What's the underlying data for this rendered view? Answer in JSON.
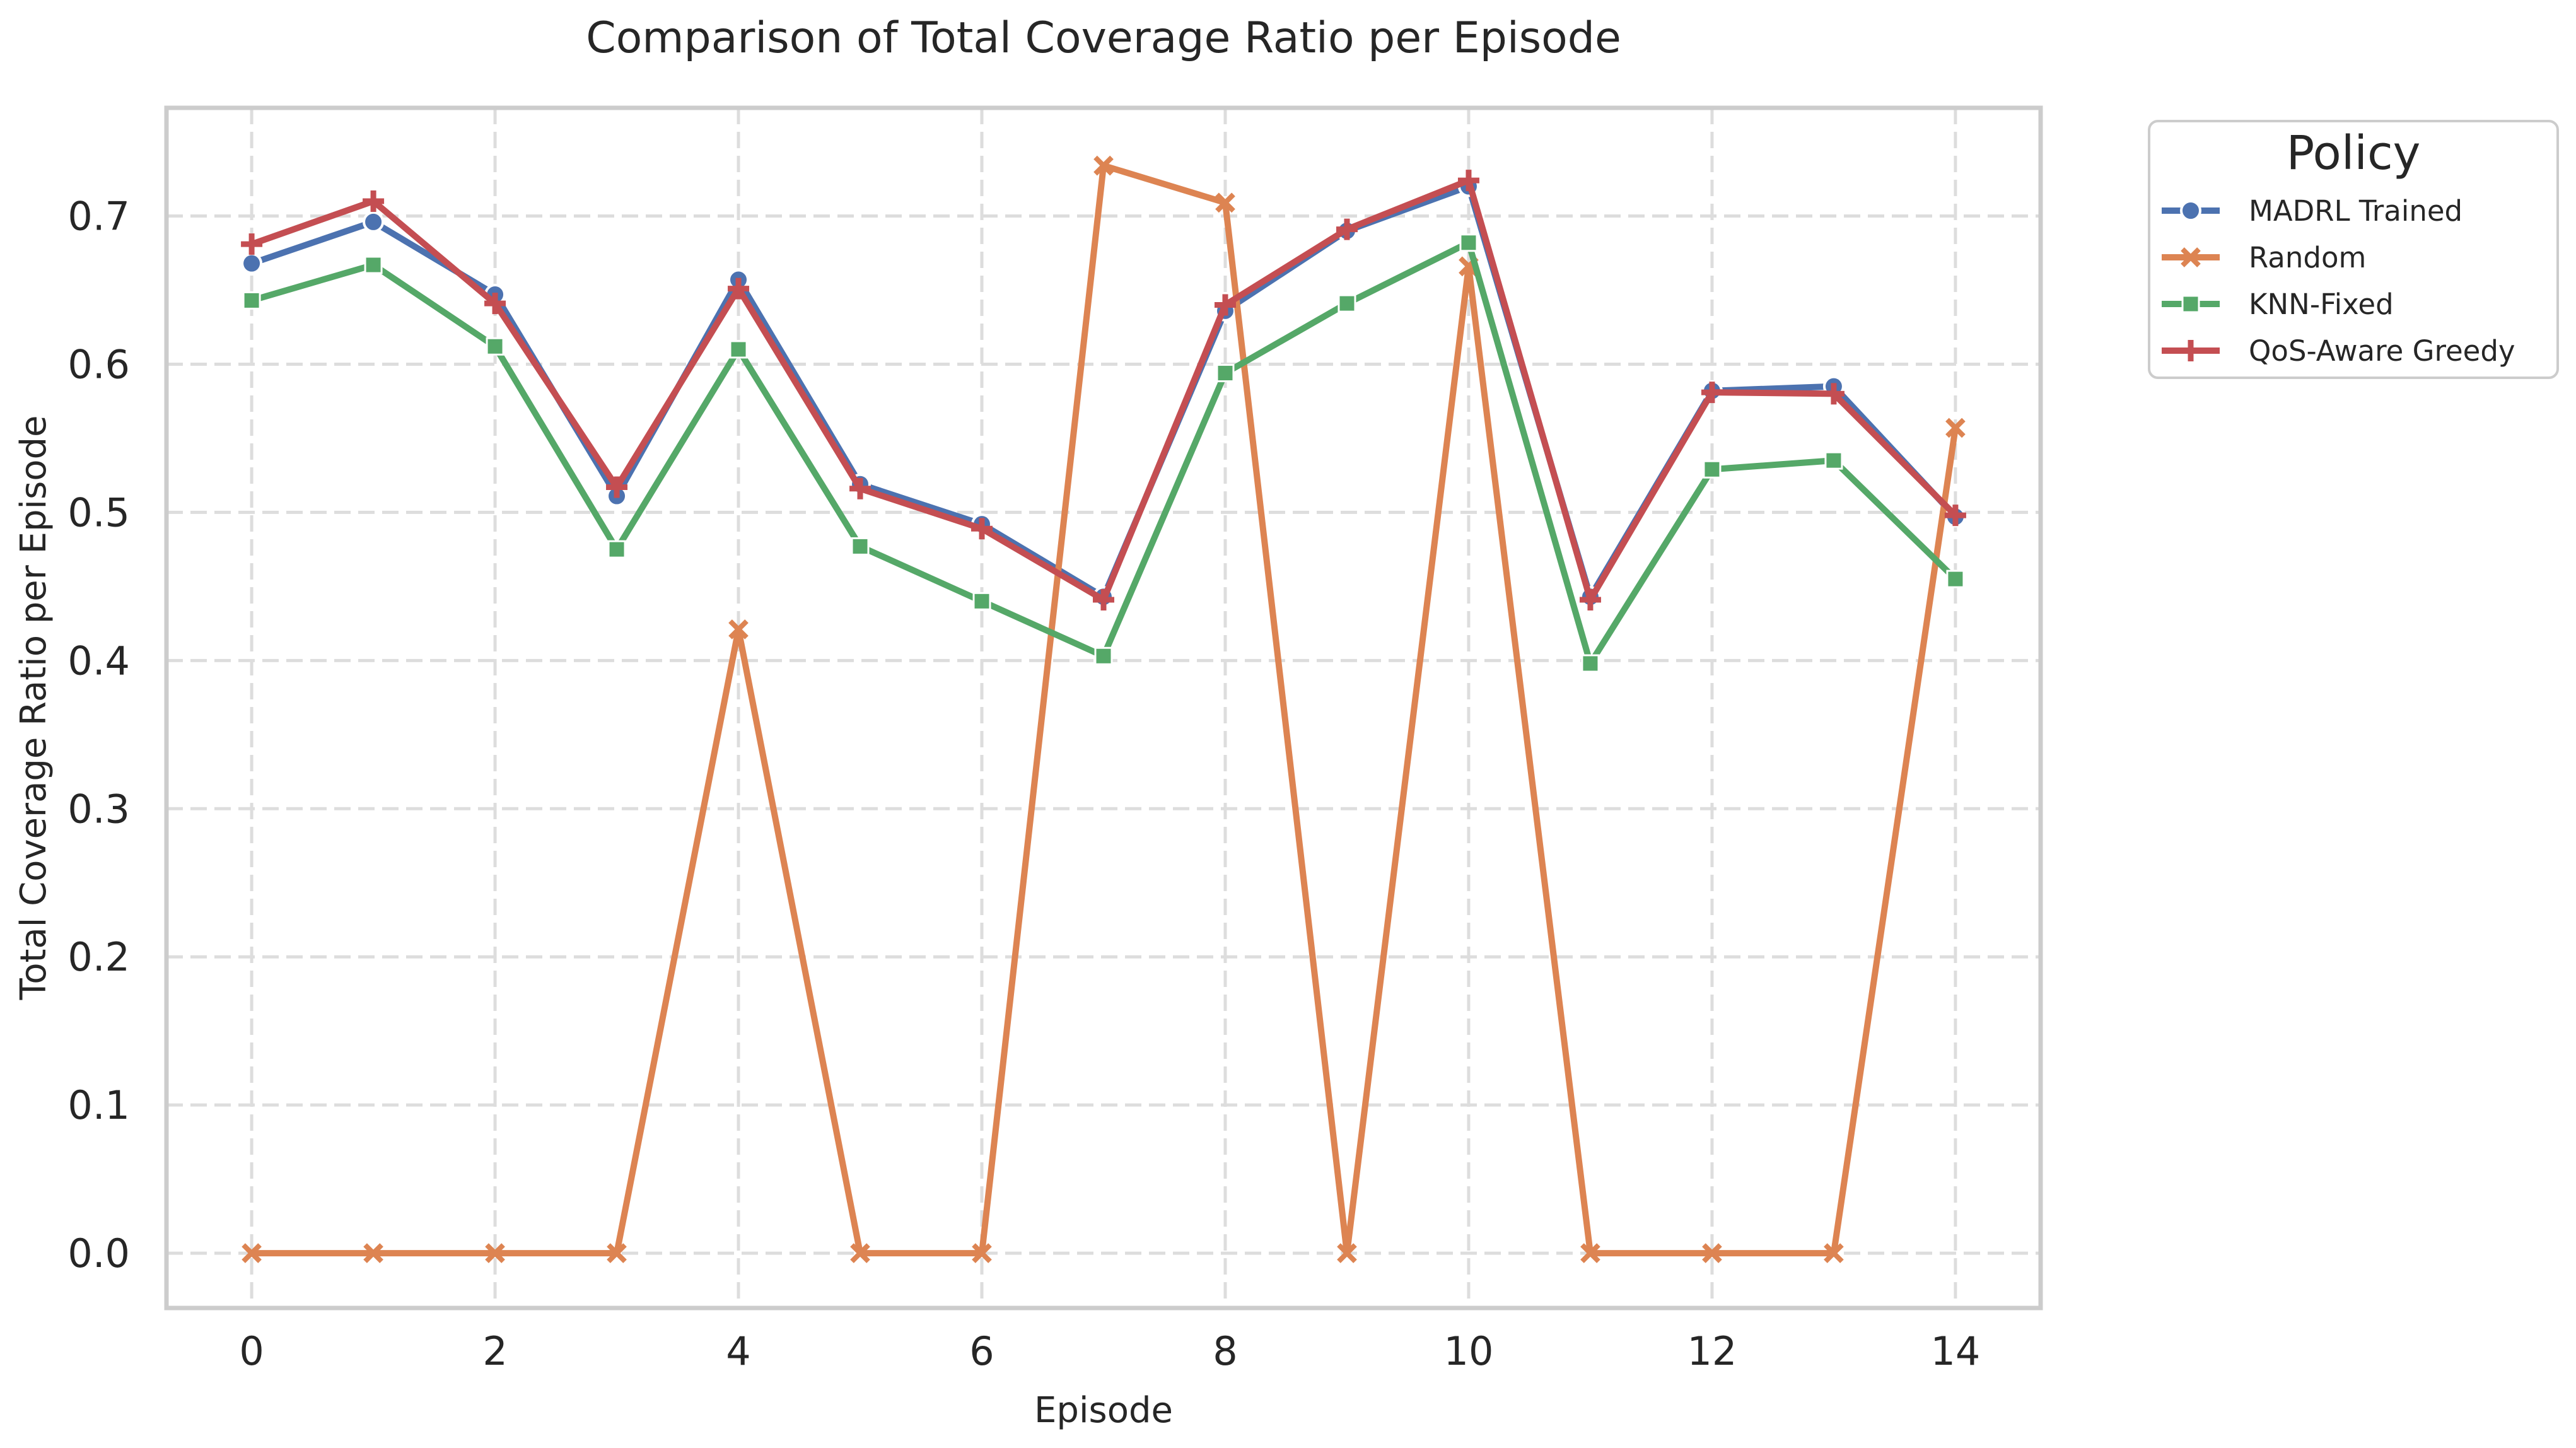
{
  "chart_data": {
    "type": "line",
    "title": "Comparison of Total Coverage Ratio per Episode",
    "xlabel": "Episode",
    "ylabel": "Total Coverage Ratio per Episode",
    "x": [
      0,
      1,
      2,
      3,
      4,
      5,
      6,
      7,
      8,
      9,
      10,
      11,
      12,
      13,
      14
    ],
    "xlim": [
      -0.7,
      14.7
    ],
    "ylim": [
      -0.037,
      0.773
    ],
    "xticks": [
      0,
      2,
      4,
      6,
      8,
      10,
      12,
      14
    ],
    "yticks": [
      0.0,
      0.1,
      0.2,
      0.3,
      0.4,
      0.5,
      0.6,
      0.7
    ],
    "xtick_labels": [
      "0",
      "2",
      "4",
      "6",
      "8",
      "10",
      "12",
      "14"
    ],
    "ytick_labels": [
      "0.0",
      "0.1",
      "0.2",
      "0.3",
      "0.4",
      "0.5",
      "0.6",
      "0.7"
    ],
    "grid": true,
    "legend": {
      "title": "Policy",
      "placement": "outside-top-right"
    },
    "series": [
      {
        "name": "MADRL Trained",
        "color": "#4c72b0",
        "marker": "circle",
        "values": [
          0.668,
          0.696,
          0.647,
          0.511,
          0.657,
          0.519,
          0.492,
          0.443,
          0.636,
          0.69,
          0.72,
          0.443,
          0.582,
          0.585,
          0.497
        ]
      },
      {
        "name": "Random",
        "color": "#dd8452",
        "marker": "x",
        "values": [
          0.0,
          0.0,
          0.0,
          0.0,
          0.421,
          0.0,
          0.0,
          0.734,
          0.709,
          0.0,
          0.666,
          0.0,
          0.0,
          0.0,
          0.557
        ]
      },
      {
        "name": "KNN-Fixed",
        "color": "#55a868",
        "marker": "square",
        "values": [
          0.643,
          0.667,
          0.612,
          0.475,
          0.61,
          0.477,
          0.44,
          0.403,
          0.594,
          0.641,
          0.682,
          0.398,
          0.529,
          0.535,
          0.455
        ]
      },
      {
        "name": "QoS-Aware Greedy",
        "color": "#c44e52",
        "marker": "plus",
        "values": [
          0.681,
          0.71,
          0.641,
          0.517,
          0.651,
          0.516,
          0.489,
          0.441,
          0.64,
          0.691,
          0.724,
          0.441,
          0.581,
          0.58,
          0.498
        ]
      }
    ]
  }
}
